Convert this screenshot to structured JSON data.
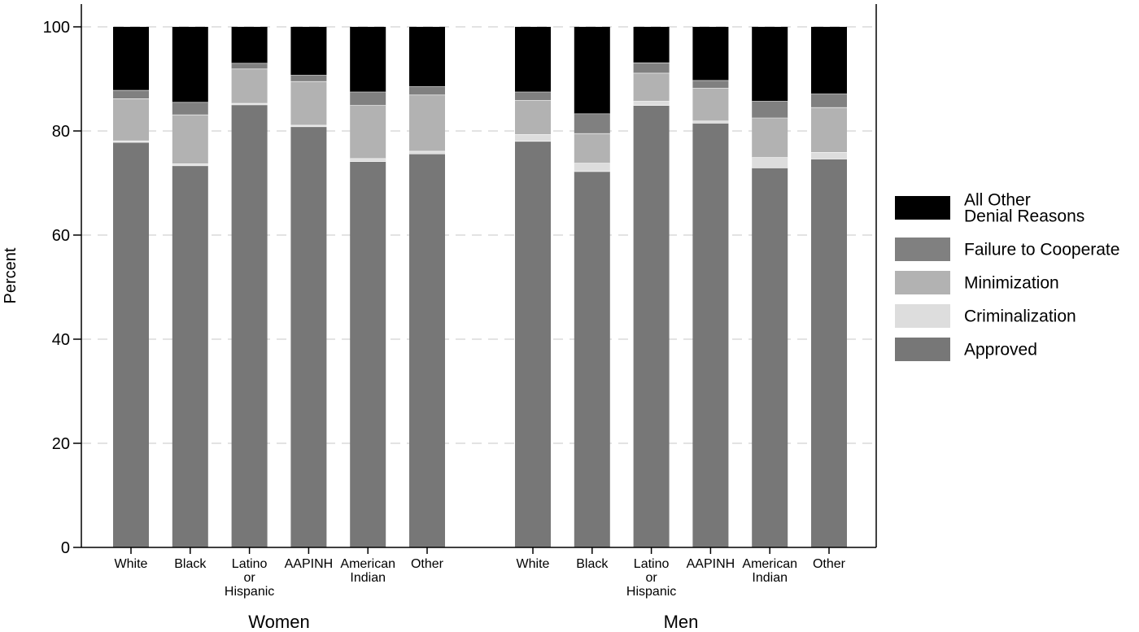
{
  "chart_data": {
    "type": "bar",
    "stacked": true,
    "ylabel": "Percent",
    "ylim": [
      0,
      100
    ],
    "yticks": [
      0,
      20,
      40,
      60,
      80,
      100
    ],
    "grid": true,
    "legend_position": "right",
    "groups": [
      {
        "name": "Women",
        "categories": [
          [
            "White"
          ],
          [
            "Black"
          ],
          [
            "Latino",
            "or",
            "Hispanic"
          ],
          [
            "AAPINH"
          ],
          [
            "American",
            "Indian"
          ],
          [
            "Other"
          ]
        ]
      },
      {
        "name": "Men",
        "categories": [
          [
            "White"
          ],
          [
            "Black"
          ],
          [
            "Latino",
            "or",
            "Hispanic"
          ],
          [
            "AAPINH"
          ],
          [
            "American",
            "Indian"
          ],
          [
            "Other"
          ]
        ]
      }
    ],
    "series": [
      {
        "name": "Approved",
        "color": "#777777",
        "values": [
          77.8,
          73.3,
          85.0,
          80.8,
          74.1,
          75.6,
          78.0,
          72.2,
          84.9,
          81.5,
          72.9,
          74.6
        ]
      },
      {
        "name": "Criminalization",
        "color": "#dddddd",
        "values": [
          0.3,
          0.4,
          0.3,
          0.3,
          0.6,
          0.5,
          1.3,
          1.6,
          0.8,
          0.4,
          2.0,
          1.3
        ]
      },
      {
        "name": "Minimization",
        "color": "#b2b2b2",
        "values": [
          8.1,
          9.4,
          6.6,
          8.4,
          10.2,
          10.8,
          6.6,
          5.7,
          5.4,
          6.3,
          7.6,
          8.6
        ]
      },
      {
        "name": "Failure to Cooperate",
        "color": "#808080",
        "values": [
          1.6,
          2.4,
          1.1,
          1.2,
          2.6,
          1.6,
          1.6,
          3.8,
          2.0,
          1.5,
          3.2,
          2.6
        ]
      },
      {
        "name": "All Other Denial Reasons",
        "color": "#000000",
        "values": [
          12.2,
          14.5,
          7.0,
          9.3,
          12.5,
          11.5,
          12.5,
          16.7,
          6.9,
          10.3,
          14.3,
          12.9
        ]
      }
    ],
    "legend": [
      {
        "lines": [
          "All Other",
          "Denial Reasons"
        ],
        "color": "#000000"
      },
      {
        "lines": [
          "Failure to Cooperate"
        ],
        "color": "#808080"
      },
      {
        "lines": [
          "Minimization"
        ],
        "color": "#b2b2b2"
      },
      {
        "lines": [
          "Criminalization"
        ],
        "color": "#dddddd"
      },
      {
        "lines": [
          "Approved"
        ],
        "color": "#777777"
      }
    ]
  }
}
